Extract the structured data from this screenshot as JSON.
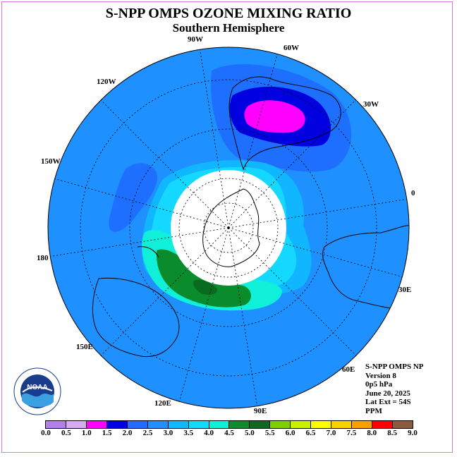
{
  "title": "S-NPP OMPS OZONE MIXING RATIO",
  "subtitle": "Southern Hemisphere",
  "logo_text": "NOAA",
  "longitude_labels": {
    "w90": "90W",
    "w60": "60W",
    "w30": "30W",
    "w120": "120W",
    "w150": "150W",
    "zero": "0",
    "e180": "180",
    "e30": "30E",
    "e150": "150E",
    "e60": "60E",
    "e120": "120E",
    "e90": "90E"
  },
  "info": {
    "instrument": "S-NPP OMPS NP",
    "version": "Version 8",
    "level": "0p5 hPa",
    "date": "June 20, 2025",
    "lat_ext": "Lat Ext = 54S",
    "units": "PPM"
  },
  "colorbar": {
    "ticks": [
      "0.0",
      "0.5",
      "1.0",
      "1.5",
      "2.0",
      "2.5",
      "3.0",
      "3.5",
      "4.0",
      "4.5",
      "5.0",
      "5.5",
      "6.0",
      "6.5",
      "7.0",
      "7.5",
      "8.0",
      "8.5",
      "9.0"
    ],
    "colors": [
      "#b57ef0",
      "#d8a8f0",
      "#ff00ff",
      "#0000e0",
      "#1f6fff",
      "#1e90ff",
      "#10b6ff",
      "#14d8ff",
      "#10f0d8",
      "#0b8c2c",
      "#086b20",
      "#7fd000",
      "#c8f000",
      "#ffff00",
      "#ffd000",
      "#ffa000",
      "#ff0000",
      "#8b5a3c"
    ]
  },
  "map_colors": {
    "background": "#1e90ff",
    "mid": "#10b6ff",
    "light": "#14d8ff",
    "high": "#1f6fff",
    "higher": "#0000e0",
    "peak": "#ff00ff",
    "green": "#0b8c2c",
    "darkgreen": "#086b20",
    "cyan": "#10f0d8",
    "nodata": "#ffffff"
  }
}
